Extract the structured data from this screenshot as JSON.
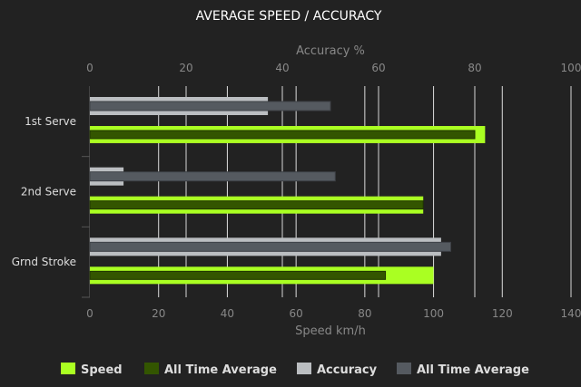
{
  "chart_data": {
    "type": "bar",
    "orientation": "horizontal",
    "title": "AVERAGE SPEED / ACCURACY",
    "categories": [
      "1st Serve",
      "2nd Serve",
      "Grnd Stroke"
    ],
    "top_axis": {
      "label": "Accuracy %",
      "range": [
        0,
        100
      ],
      "ticks": [
        0,
        20,
        40,
        60,
        80,
        100
      ]
    },
    "bottom_axis": {
      "label": "Speed km/h",
      "range": [
        0,
        140
      ],
      "ticks": [
        0,
        20,
        40,
        60,
        80,
        100,
        120,
        140
      ]
    },
    "grid": true,
    "legend_position": "bottom",
    "series": [
      {
        "name": "Speed",
        "axis": "bottom",
        "color": "#aaff22",
        "values": [
          115,
          97,
          100
        ]
      },
      {
        "name": "All Time Average",
        "axis": "bottom",
        "color": "#335500",
        "values": [
          112,
          97,
          86
        ]
      },
      {
        "name": "Accuracy",
        "axis": "top",
        "color": "#bbbec1",
        "values": [
          37,
          7,
          73
        ]
      },
      {
        "name": "All Time Average",
        "axis": "top",
        "color": "#555a60",
        "values": [
          50,
          51,
          75
        ]
      }
    ]
  }
}
